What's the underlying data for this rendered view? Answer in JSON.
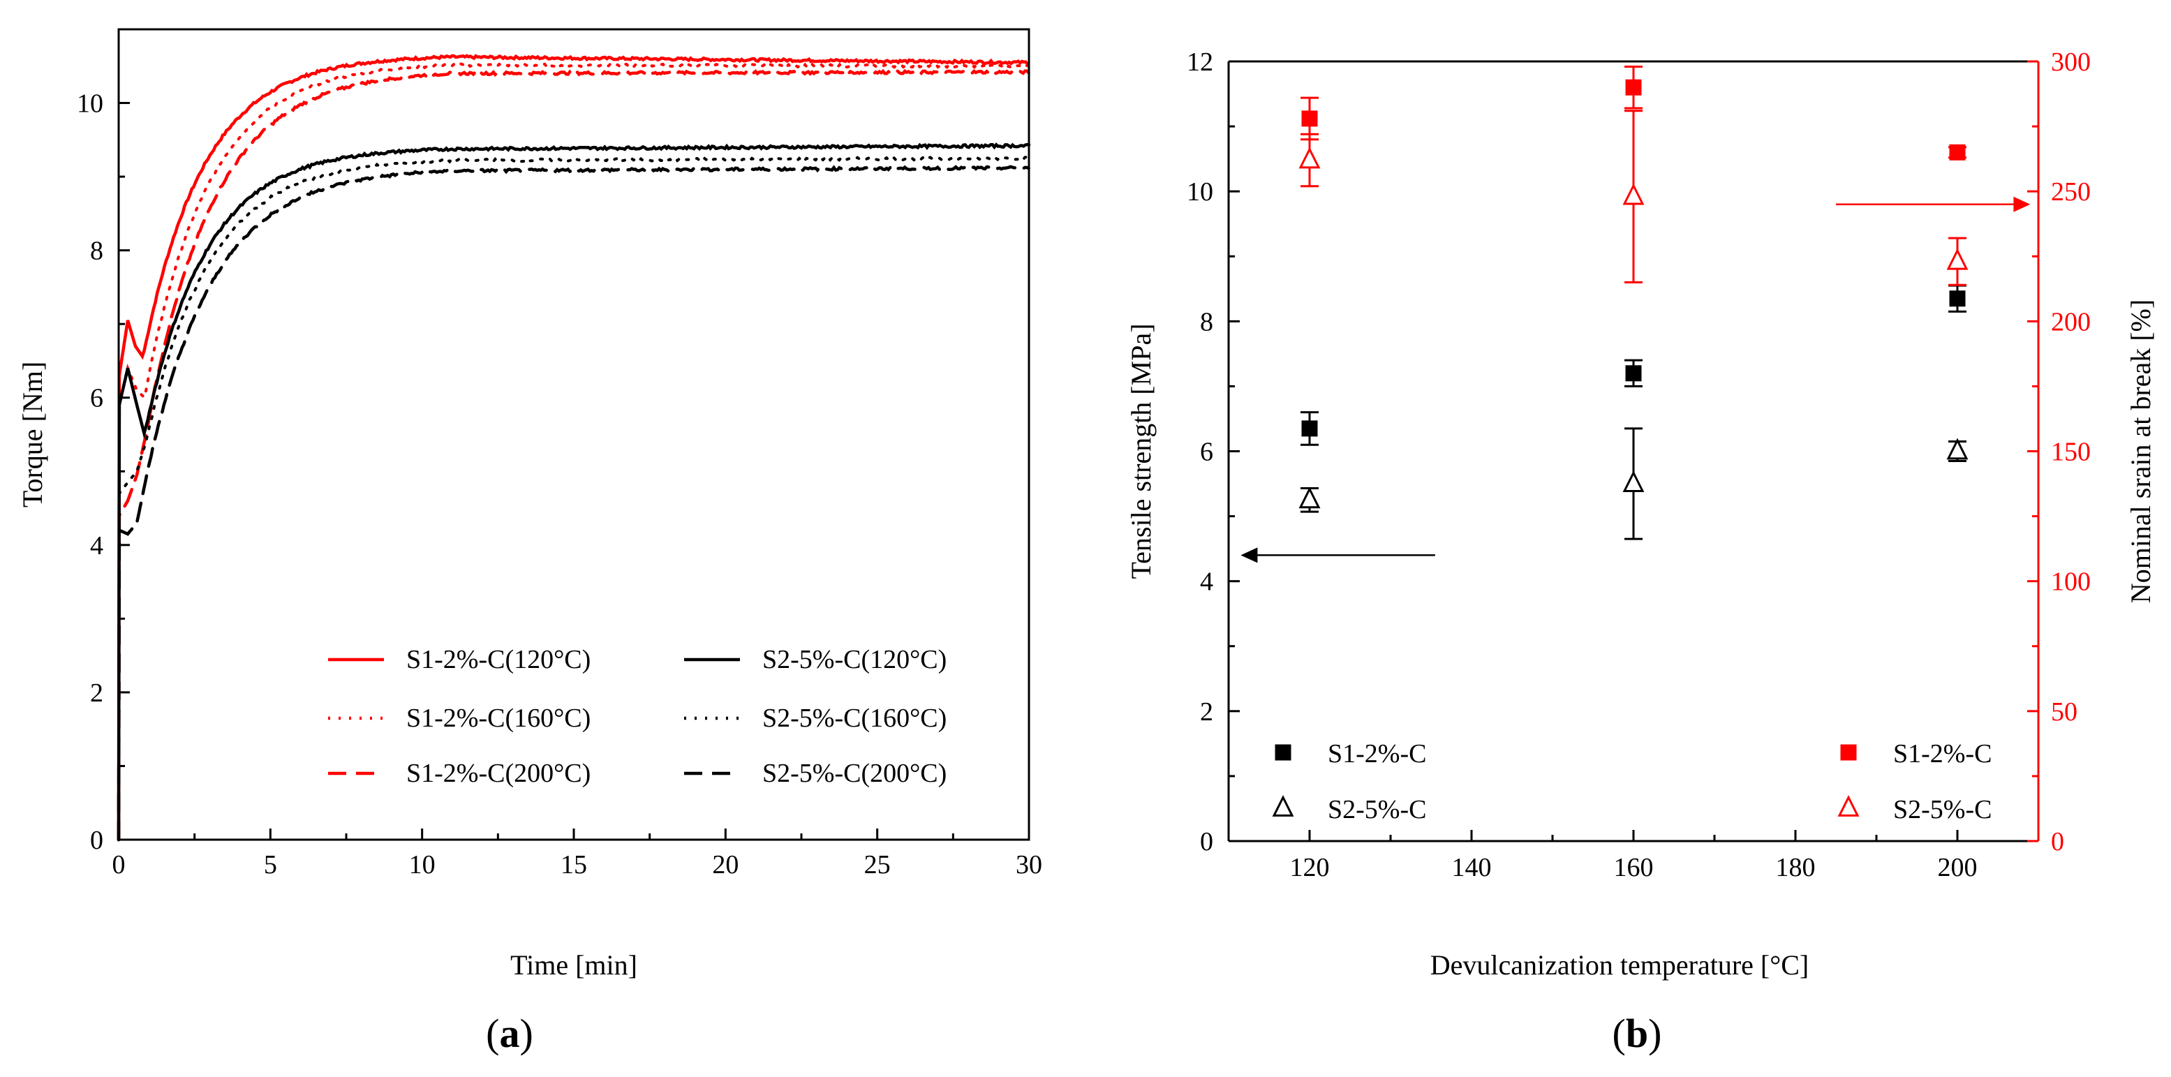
{
  "colors": {
    "red": "#ff0000",
    "black": "#000000",
    "axis": "#000000"
  },
  "chart_data": [
    {
      "panel": "a",
      "panel_label": "(a)",
      "panel_label_letter": "a",
      "type": "line",
      "xlabel": "Time [min]",
      "ylabel": "Torque [Nm]",
      "xlim": [
        0,
        30
      ],
      "ylim": [
        0,
        11
      ],
      "xticks": [
        0,
        5,
        10,
        15,
        20,
        25,
        30
      ],
      "yticks": [
        0,
        2,
        4,
        6,
        8,
        10
      ],
      "legend_position": "bottom-right",
      "series": [
        {
          "name": "S1-2%-C(120°C)",
          "color": "#ff0000",
          "style": "solid",
          "y0": 6.3,
          "early": [
            [
              0.3,
              7.05
            ],
            [
              0.55,
              6.7
            ],
            [
              0.8,
              6.55
            ]
          ],
          "plateau": 10.65,
          "final": 10.55,
          "k": 0.5
        },
        {
          "name": "S1-2%-C(160°C)",
          "color": "#ff0000",
          "style": "dotted",
          "y0": 5.9,
          "early": [
            [
              0.3,
              6.4
            ],
            [
              0.6,
              6.1
            ],
            [
              0.85,
              6.0
            ]
          ],
          "plateau": 10.55,
          "final": 10.5,
          "k": 0.48
        },
        {
          "name": "S1-2%-C(200°C)",
          "color": "#ff0000",
          "style": "dashed",
          "y0": 4.4,
          "early": [
            [
              0.3,
              4.6
            ],
            [
              0.6,
              4.95
            ],
            [
              0.9,
              5.5
            ]
          ],
          "plateau": 10.45,
          "final": 10.42,
          "k": 0.46
        },
        {
          "name": "S2-5%-C(120°C)",
          "color": "#000000",
          "style": "solid",
          "y0": 5.9,
          "early": [
            [
              0.3,
              6.4
            ],
            [
              0.6,
              5.9
            ],
            [
              0.85,
              5.5
            ]
          ],
          "plateau": 9.4,
          "final": 9.42,
          "k": 0.5
        },
        {
          "name": "S2-5%-C(160°C)",
          "color": "#000000",
          "style": "dotted",
          "y0": 4.7,
          "early": [
            [
              0.3,
              4.85
            ],
            [
              0.6,
              5.0
            ],
            [
              0.9,
              5.4
            ]
          ],
          "plateau": 9.25,
          "final": 9.25,
          "k": 0.48
        },
        {
          "name": "S2-5%-C(200°C)",
          "color": "#000000",
          "style": "dashed",
          "y0": 4.2,
          "early": [
            [
              0.3,
              4.15
            ],
            [
              0.6,
              4.3
            ],
            [
              0.9,
              4.9
            ]
          ],
          "plateau": 9.12,
          "final": 9.12,
          "k": 0.46
        }
      ]
    },
    {
      "panel": "b",
      "panel_label": "(b)",
      "panel_label_letter": "b",
      "type": "scatter",
      "xlabel": "Devulcanization temperature [°C]",
      "ylabel": "Tensile strength [MPa]",
      "y2label": "Nominal srain at break [%]",
      "xlim": [
        110,
        210
      ],
      "ylim": [
        0,
        12
      ],
      "y2lim": [
        0,
        300
      ],
      "xticks": [
        120,
        140,
        160,
        180,
        200
      ],
      "yticks": [
        0,
        2,
        4,
        6,
        8,
        10,
        12
      ],
      "y2ticks": [
        0,
        50,
        100,
        150,
        200,
        250,
        300
      ],
      "legend_left_position": "bottom-left",
      "legend_right_position": "bottom-right",
      "arrow_left": {
        "axis": "left",
        "from_x": 135.5,
        "to_x": 111.5,
        "y": 4.4
      },
      "arrow_right": {
        "axis": "right",
        "from_x": 185,
        "to_x": 209,
        "y2": 245
      },
      "series": [
        {
          "name": "S1-2%-C",
          "axis": "left",
          "marker": "filled-square",
          "color": "#000000",
          "x": [
            120,
            160,
            200
          ],
          "y": [
            6.35,
            7.2,
            8.35
          ],
          "err": [
            0.25,
            0.2,
            0.2
          ]
        },
        {
          "name": "S2-5%-C",
          "axis": "left",
          "marker": "open-triangle",
          "color": "#000000",
          "x": [
            120,
            160,
            200
          ],
          "y": [
            5.25,
            5.5,
            6.0
          ],
          "err": [
            0.18,
            0.85,
            0.15
          ]
        },
        {
          "name": "S1-2%-C",
          "axis": "right",
          "marker": "filled-square",
          "color": "#ff0000",
          "x": [
            120,
            160,
            200
          ],
          "y": [
            278,
            290,
            265
          ],
          "err": [
            8,
            8,
            2
          ]
        },
        {
          "name": "S2-5%-C",
          "axis": "right",
          "marker": "open-triangle",
          "color": "#ff0000",
          "x": [
            120,
            160,
            200
          ],
          "y": [
            262,
            248,
            223
          ],
          "err": [
            10,
            33,
            9
          ]
        }
      ]
    }
  ]
}
